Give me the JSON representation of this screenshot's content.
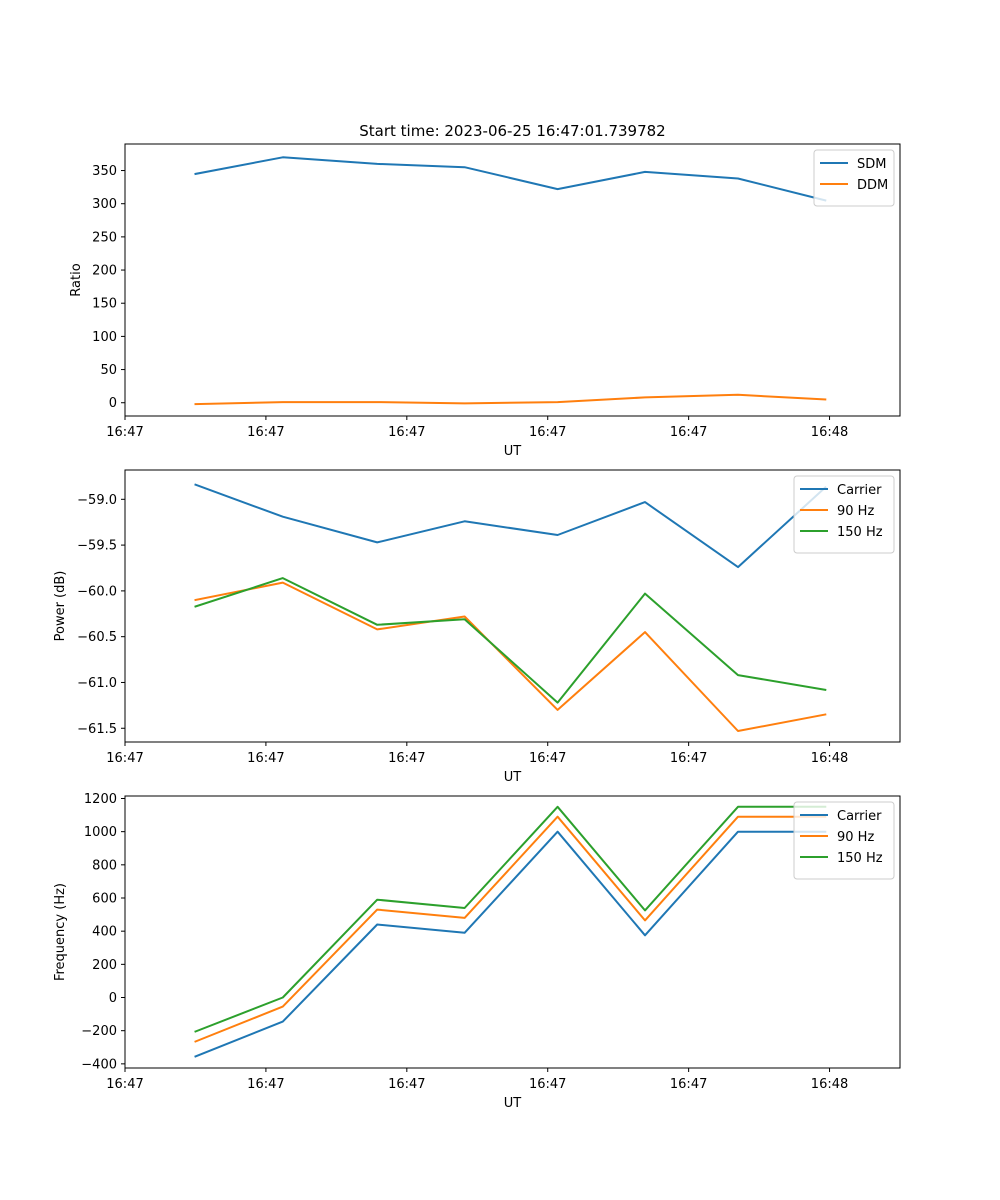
{
  "chart_data": [
    {
      "type": "line",
      "title": "Start time: 2023-06-25 16:47:01.739782",
      "xlabel": "UT",
      "ylabel": "Ratio",
      "xlim": [
        1.5,
        7.0
      ],
      "ylim": [
        -20.0,
        390.0
      ],
      "x_ticks": [
        {
          "value": 1.5,
          "label": "16:47"
        },
        {
          "value": 2.5,
          "label": "16:47"
        },
        {
          "value": 3.5,
          "label": "16:47"
        },
        {
          "value": 4.5,
          "label": "16:47"
        },
        {
          "value": 5.5,
          "label": "16:47"
        },
        {
          "value": 6.5,
          "label": "16:48"
        }
      ],
      "y_ticks": [
        {
          "value": 0,
          "label": "0"
        },
        {
          "value": 50,
          "label": "50"
        },
        {
          "value": 100,
          "label": "100"
        },
        {
          "value": 150,
          "label": "150"
        },
        {
          "value": 200,
          "label": "200"
        },
        {
          "value": 250,
          "label": "250"
        },
        {
          "value": 300,
          "label": "300"
        },
        {
          "value": 350,
          "label": "350"
        }
      ],
      "legend_position": "top-right",
      "grid": false,
      "series": [
        {
          "name": "SDM",
          "color": "#1f77b4",
          "x": [
            2.0,
            2.62,
            3.29,
            3.91,
            4.57,
            5.19,
            5.85,
            6.47
          ],
          "y": [
            345,
            370,
            360,
            355,
            322,
            348,
            338,
            305
          ]
        },
        {
          "name": "DDM",
          "color": "#ff7f0e",
          "x": [
            2.0,
            2.62,
            3.29,
            3.91,
            4.57,
            5.19,
            5.85,
            6.47
          ],
          "y": [
            -2,
            1,
            1,
            -1,
            1,
            8,
            12,
            5
          ]
        }
      ]
    },
    {
      "type": "line",
      "title": "",
      "xlabel": "UT",
      "ylabel": "Power (dB)",
      "xlim": [
        1.5,
        7.0
      ],
      "ylim": [
        -61.65,
        -58.68
      ],
      "x_ticks": [
        {
          "value": 1.5,
          "label": "16:47"
        },
        {
          "value": 2.5,
          "label": "16:47"
        },
        {
          "value": 3.5,
          "label": "16:47"
        },
        {
          "value": 4.5,
          "label": "16:47"
        },
        {
          "value": 5.5,
          "label": "16:47"
        },
        {
          "value": 6.5,
          "label": "16:48"
        }
      ],
      "y_ticks": [
        {
          "value": -59.0,
          "label": "−59.0"
        },
        {
          "value": -59.5,
          "label": "−59.5"
        },
        {
          "value": -60.0,
          "label": "−60.0"
        },
        {
          "value": -60.5,
          "label": "−60.5"
        },
        {
          "value": -61.0,
          "label": "−61.0"
        },
        {
          "value": -61.5,
          "label": "−61.5"
        }
      ],
      "legend_position": "top-right",
      "grid": false,
      "series": [
        {
          "name": "Carrier",
          "color": "#1f77b4",
          "x": [
            2.0,
            2.62,
            3.29,
            3.91,
            4.57,
            5.19,
            5.85,
            6.47
          ],
          "y": [
            -58.84,
            -59.19,
            -59.47,
            -59.24,
            -59.39,
            -59.03,
            -59.74,
            -58.87
          ]
        },
        {
          "name": "90 Hz",
          "color": "#ff7f0e",
          "x": [
            2.0,
            2.62,
            3.29,
            3.91,
            4.57,
            5.19,
            5.85,
            6.47
          ],
          "y": [
            -60.1,
            -59.91,
            -60.42,
            -60.28,
            -61.3,
            -60.45,
            -61.53,
            -61.35
          ]
        },
        {
          "name": "150 Hz",
          "color": "#2ca02c",
          "x": [
            2.0,
            2.62,
            3.29,
            3.91,
            4.57,
            5.19,
            5.85,
            6.47
          ],
          "y": [
            -60.17,
            -59.86,
            -60.37,
            -60.31,
            -61.22,
            -60.03,
            -60.92,
            -61.08
          ]
        }
      ]
    },
    {
      "type": "line",
      "title": "",
      "xlabel": "UT",
      "ylabel": "Frequency (Hz)",
      "xlim": [
        1.5,
        7.0
      ],
      "ylim": [
        -425.0,
        1215.0
      ],
      "x_ticks": [
        {
          "value": 1.5,
          "label": "16:47"
        },
        {
          "value": 2.5,
          "label": "16:47"
        },
        {
          "value": 3.5,
          "label": "16:47"
        },
        {
          "value": 4.5,
          "label": "16:47"
        },
        {
          "value": 5.5,
          "label": "16:47"
        },
        {
          "value": 6.5,
          "label": "16:48"
        }
      ],
      "y_ticks": [
        {
          "value": -400,
          "label": "−400"
        },
        {
          "value": -200,
          "label": "−200"
        },
        {
          "value": 0,
          "label": "0"
        },
        {
          "value": 200,
          "label": "200"
        },
        {
          "value": 400,
          "label": "400"
        },
        {
          "value": 600,
          "label": "600"
        },
        {
          "value": 800,
          "label": "800"
        },
        {
          "value": 1000,
          "label": "1000"
        },
        {
          "value": 1200,
          "label": "1200"
        }
      ],
      "legend_position": "top-right",
      "grid": false,
      "series": [
        {
          "name": "Carrier",
          "color": "#1f77b4",
          "x": [
            2.0,
            2.62,
            3.29,
            3.91,
            4.57,
            5.19,
            5.85,
            6.47
          ],
          "y": [
            -355,
            -145,
            440,
            390,
            1000,
            375,
            1000,
            1000
          ]
        },
        {
          "name": "90 Hz",
          "color": "#ff7f0e",
          "x": [
            2.0,
            2.62,
            3.29,
            3.91,
            4.57,
            5.19,
            5.85,
            6.47
          ],
          "y": [
            -265,
            -55,
            530,
            480,
            1090,
            465,
            1090,
            1090
          ]
        },
        {
          "name": "150 Hz",
          "color": "#2ca02c",
          "x": [
            2.0,
            2.62,
            3.29,
            3.91,
            4.57,
            5.19,
            5.85,
            6.47
          ],
          "y": [
            -205,
            0,
            590,
            540,
            1150,
            525,
            1150,
            1150
          ]
        }
      ]
    }
  ]
}
